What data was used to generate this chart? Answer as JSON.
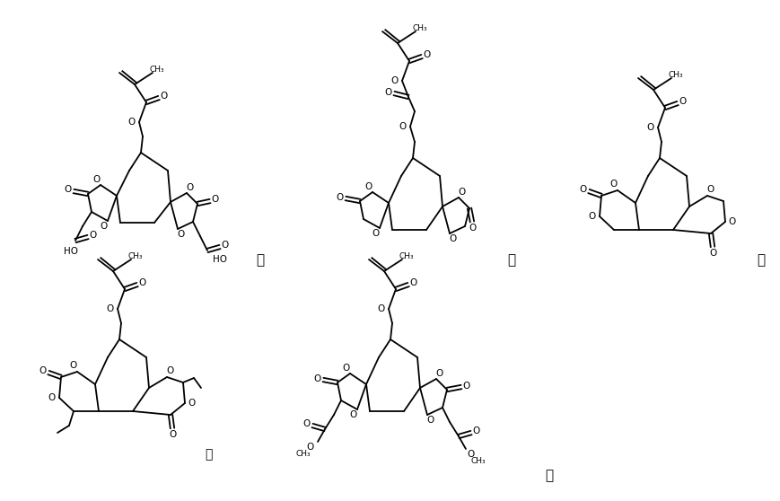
{
  "bg": "#ffffff",
  "fw": 8.7,
  "fh": 5.58,
  "sep1": [
    290,
    268,
    "、"
  ],
  "sep2": [
    570,
    268,
    "、"
  ],
  "sep3": [
    848,
    268,
    "、"
  ],
  "sep4": [
    232,
    52,
    "和"
  ],
  "sep5": [
    612,
    28,
    "。"
  ]
}
